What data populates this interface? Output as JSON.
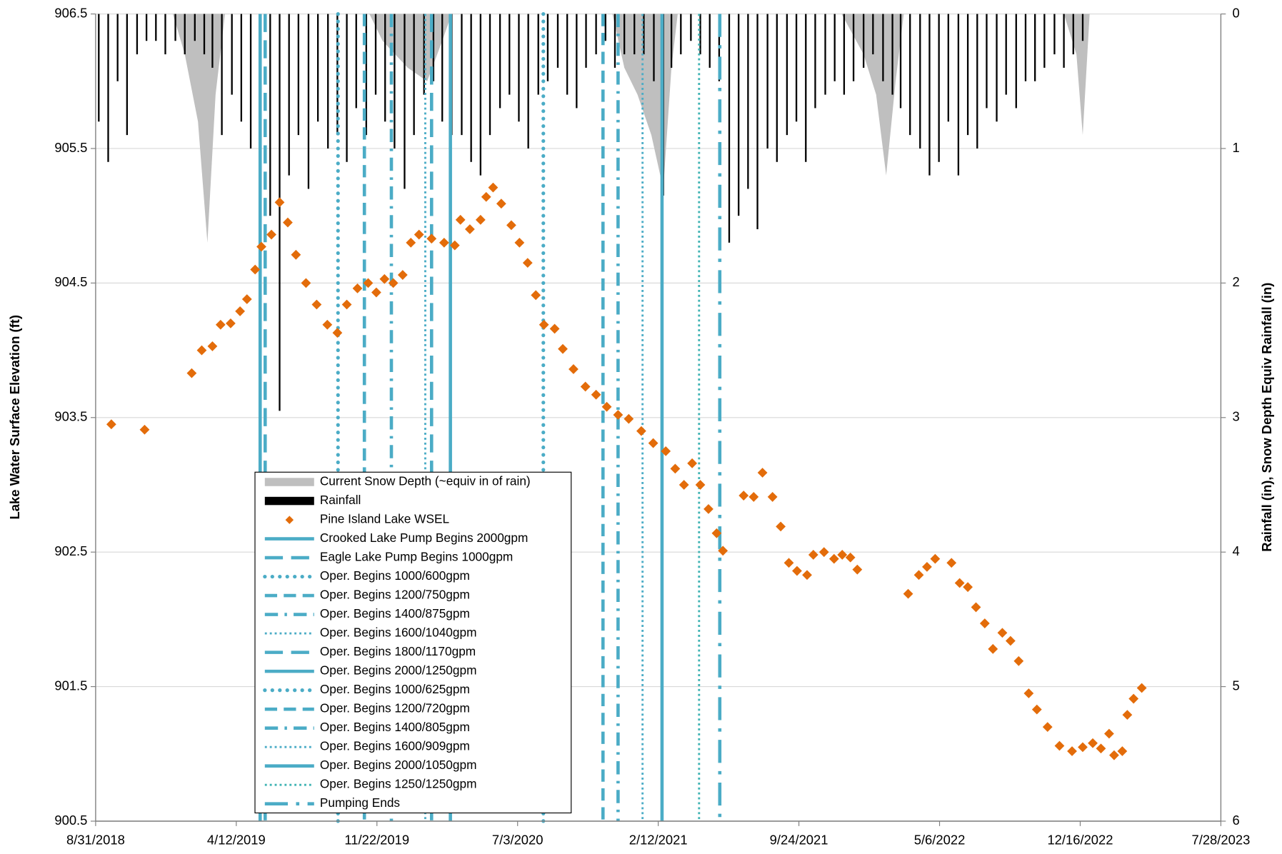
{
  "chart_data": {
    "type": "combo",
    "y_label": "Lake Water Surface Elevation (ft)",
    "y2_label": "Rainfall (in), Snow Depth Equiv Rainfall (in)",
    "xlim": [
      "8/31/2018",
      "7/28/2023"
    ],
    "xticks": [
      "8/31/2018",
      "4/12/2019",
      "11/22/2019",
      "7/3/2020",
      "2/12/2021",
      "9/24/2021",
      "5/6/2022",
      "12/16/2022",
      "7/28/2023"
    ],
    "ylim": [
      900.5,
      906.5
    ],
    "yticks": [
      900.5,
      901.5,
      902.5,
      903.5,
      904.5,
      905.5,
      906.5
    ],
    "y2lim": [
      0,
      6
    ],
    "y2ticks": [
      0,
      1,
      2,
      3,
      4,
      5,
      6
    ],
    "y2_inverted": true,
    "grid": true,
    "series": [
      {
        "name": "Current Snow Depth (~equiv  in of rain)",
        "type": "area",
        "axis": "y2",
        "color": "#bfbfbf",
        "x": [
          "9/1/2018",
          "1/1/2019",
          "1/20/2019",
          "2/10/2019",
          "2/25/2019",
          "3/10/2019",
          "3/25/2019",
          "11/10/2019",
          "12/1/2019",
          "1/10/2020",
          "2/10/2020",
          "3/5/2020",
          "3/20/2020",
          "12/1/2020",
          "12/20/2020",
          "1/10/2021",
          "2/1/2021",
          "2/20/2021",
          "3/5/2021",
          "3/15/2021",
          "12/1/2021",
          "1/5/2022",
          "1/25/2022",
          "2/10/2022",
          "2/25/2022",
          "3/10/2022",
          "11/20/2022",
          "12/10/2022",
          "12/20/2022",
          "12/31/2022"
        ],
        "values": [
          0,
          0,
          0.3,
          0.8,
          1.7,
          0.6,
          0,
          0,
          0.2,
          0.4,
          0.5,
          0.2,
          0,
          0,
          0.4,
          0.6,
          0.9,
          1.3,
          0.4,
          0,
          0,
          0.3,
          0.6,
          1.2,
          0.5,
          0,
          0,
          0.3,
          0.9,
          0
        ]
      },
      {
        "name": "Rainfall",
        "type": "bar",
        "axis": "y2",
        "color": "#000000",
        "x": [
          "9/5/2018",
          "9/20/2018",
          "10/5/2018",
          "10/20/2018",
          "11/5/2018",
          "11/20/2018",
          "12/5/2018",
          "12/20/2018",
          "1/5/2019",
          "1/20/2019",
          "2/5/2019",
          "2/20/2019",
          "3/5/2019",
          "3/20/2019",
          "4/5/2019",
          "4/20/2019",
          "5/5/2019",
          "5/20/2019",
          "6/5/2019",
          "6/20/2019",
          "7/5/2019",
          "7/20/2019",
          "8/5/2019",
          "8/20/2019",
          "9/5/2019",
          "9/20/2019",
          "10/5/2019",
          "10/20/2019",
          "11/5/2019",
          "11/20/2019",
          "12/5/2019",
          "12/20/2019",
          "1/5/2020",
          "1/20/2020",
          "2/5/2020",
          "2/20/2020",
          "3/5/2020",
          "3/20/2020",
          "4/5/2020",
          "4/20/2020",
          "5/5/2020",
          "5/20/2020",
          "6/5/2020",
          "6/20/2020",
          "7/5/2020",
          "7/20/2020",
          "8/5/2020",
          "8/20/2020",
          "9/5/2020",
          "9/20/2020",
          "10/5/2020",
          "10/20/2020",
          "11/5/2020",
          "11/20/2020",
          "12/5/2020",
          "12/20/2020",
          "1/5/2021",
          "1/20/2021",
          "2/5/2021",
          "2/20/2021",
          "3/5/2021",
          "3/20/2021",
          "4/5/2021",
          "4/20/2021",
          "5/5/2021",
          "5/20/2021",
          "6/5/2021",
          "6/20/2021",
          "7/5/2021",
          "7/20/2021",
          "8/5/2021",
          "8/20/2021",
          "9/5/2021",
          "9/20/2021",
          "10/5/2021",
          "10/20/2021",
          "11/5/2021",
          "11/20/2021",
          "12/5/2021",
          "12/20/2021",
          "1/5/2022",
          "1/20/2022",
          "2/5/2022",
          "2/20/2022",
          "3/5/2022",
          "3/20/2022",
          "4/5/2022",
          "4/20/2022",
          "5/5/2022",
          "5/20/2022",
          "6/5/2022",
          "6/20/2022",
          "7/5/2022",
          "7/20/2022",
          "8/5/2022",
          "8/20/2022",
          "9/5/2022",
          "9/20/2022",
          "10/5/2022",
          "10/20/2022",
          "11/5/2022",
          "11/20/2022",
          "12/5/2022",
          "12/20/2022"
        ],
        "values": [
          0.8,
          1.1,
          0.5,
          0.9,
          0.3,
          0.2,
          0.2,
          0.3,
          0.2,
          0.3,
          0.2,
          0.3,
          0.4,
          0.9,
          0.6,
          0.8,
          1.0,
          1.27,
          1.5,
          2.95,
          1.2,
          0.9,
          1.3,
          0.8,
          1.0,
          0.9,
          1.1,
          0.7,
          0.9,
          0.6,
          0.8,
          1.0,
          1.3,
          0.9,
          0.6,
          0.5,
          0.8,
          0.9,
          0.9,
          1.1,
          1.2,
          0.9,
          0.7,
          0.6,
          0.8,
          1.0,
          0.6,
          0.5,
          0.4,
          0.6,
          0.7,
          0.4,
          0.3,
          0.2,
          0.4,
          0.3,
          0.3,
          0.3,
          0.5,
          1.35,
          0.4,
          0.3,
          0.2,
          0.3,
          0.4,
          0.5,
          1.7,
          1.5,
          1.3,
          1.6,
          1.0,
          1.1,
          0.9,
          0.8,
          1.1,
          0.7,
          0.6,
          0.5,
          0.6,
          0.5,
          0.4,
          0.3,
          0.5,
          0.6,
          0.7,
          0.9,
          1.0,
          1.2,
          1.1,
          0.8,
          1.2,
          0.9,
          1.0,
          0.7,
          0.8,
          0.6,
          0.7,
          0.5,
          0.5,
          0.4,
          0.3,
          0.4,
          0.3,
          0.2
        ]
      },
      {
        "name": "Pine Island Lake WSEL",
        "type": "scatter",
        "axis": "y",
        "color": "#e36c0a",
        "x": [
          "9/25/2018",
          "11/17/2018",
          "1/31/2019",
          "2/16/2019",
          "3/5/2019",
          "3/18/2019",
          "4/3/2019",
          "4/18/2019",
          "4/29/2019",
          "5/12/2019",
          "5/22/2019",
          "6/7/2019",
          "6/20/2019",
          "7/3/2019",
          "7/16/2019",
          "8/1/2019",
          "8/18/2019",
          "9/4/2019",
          "9/20/2019",
          "10/5/2019",
          "10/22/2019",
          "11/8/2019",
          "11/21/2019",
          "12/4/2019",
          "12/18/2019",
          "1/2/2020",
          "1/15/2020",
          "1/28/2020",
          "2/17/2020",
          "3/8/2020",
          "3/25/2020",
          "4/3/2020",
          "4/18/2020",
          "5/5/2020",
          "5/14/2020",
          "5/25/2020",
          "6/7/2020",
          "6/23/2020",
          "7/6/2020",
          "7/19/2020",
          "8/1/2020",
          "8/14/2020",
          "8/31/2020",
          "9/13/2020",
          "9/30/2020",
          "10/19/2020",
          "11/5/2020",
          "11/22/2020",
          "12/10/2020",
          "12/27/2020",
          "1/16/2021",
          "2/4/2021",
          "2/24/2021",
          "3/11/2021",
          "3/25/2021",
          "4/7/2021",
          "4/20/2021",
          "5/3/2021",
          "5/16/2021",
          "5/26/2021",
          "6/28/2021",
          "7/14/2021",
          "7/28/2021",
          "8/13/2021",
          "8/26/2021",
          "9/8/2021",
          "9/21/2021",
          "10/7/2021",
          "10/17/2021",
          "11/3/2021",
          "11/19/2021",
          "12/2/2021",
          "12/15/2021",
          "12/26/2021",
          "3/17/2022",
          "4/3/2022",
          "4/16/2022",
          "4/29/2022",
          "5/25/2022",
          "6/7/2022",
          "6/20/2022",
          "7/3/2022",
          "7/17/2022",
          "7/30/2022",
          "8/14/2022",
          "8/27/2022",
          "9/9/2022",
          "9/25/2022",
          "10/8/2022",
          "10/25/2022",
          "11/13/2022",
          "12/3/2022",
          "12/20/2022",
          "1/5/2023",
          "1/18/2023",
          "1/31/2023",
          "2/8/2023",
          "2/21/2023",
          "3/1/2023",
          "3/11/2023",
          "3/24/2023"
        ],
        "values": [
          903.45,
          903.41,
          903.83,
          904.0,
          904.03,
          904.19,
          904.2,
          904.29,
          904.38,
          904.6,
          904.77,
          904.86,
          905.1,
          904.95,
          904.71,
          904.5,
          904.34,
          904.19,
          904.13,
          904.34,
          904.46,
          904.5,
          904.43,
          904.53,
          904.5,
          904.56,
          904.8,
          904.86,
          904.83,
          904.8,
          904.78,
          904.97,
          904.9,
          904.97,
          905.14,
          905.21,
          905.09,
          904.93,
          904.8,
          904.65,
          904.41,
          904.19,
          904.16,
          904.01,
          903.86,
          903.73,
          903.67,
          903.58,
          903.52,
          903.49,
          903.4,
          903.31,
          903.25,
          903.12,
          903.0,
          903.16,
          903.0,
          902.82,
          902.64,
          902.51,
          902.92,
          902.91,
          903.09,
          902.91,
          902.69,
          902.42,
          902.36,
          902.33,
          902.48,
          902.5,
          902.45,
          902.48,
          902.46,
          902.37,
          902.19,
          902.33,
          902.39,
          902.45,
          902.42,
          902.27,
          902.24,
          902.09,
          901.97,
          901.78,
          901.9,
          901.84,
          901.69,
          901.45,
          901.33,
          901.2,
          901.06,
          901.02,
          901.05,
          901.08,
          901.04,
          901.15,
          900.99,
          901.02,
          901.29,
          901.41,
          901.49
        ]
      },
      {
        "name": "Crooked Lake Pump Begins 2000gpm",
        "type": "vline",
        "style": "solid",
        "color": "#4bacc6",
        "x": [
          "5/20/2019"
        ]
      },
      {
        "name": "Eagle Lake Pump Begins 1000gpm",
        "type": "vline",
        "style": "long-dash",
        "color": "#4bacc6",
        "x": [
          "5/28/2019"
        ]
      },
      {
        "name": "Oper. Begins 1000/600gpm",
        "type": "vline",
        "style": "round-dot",
        "color": "#4bacc6",
        "x": [
          "9/21/2019"
        ]
      },
      {
        "name": "Oper. Begins 1200/750gpm",
        "type": "vline",
        "style": "dash",
        "color": "#4bacc6",
        "x": [
          "11/2/2019"
        ]
      },
      {
        "name": "Oper. Begins 1400/875gpm",
        "type": "vline",
        "style": "dash-dot",
        "color": "#4bacc6",
        "x": [
          "12/15/2019"
        ]
      },
      {
        "name": "Oper. Begins 1600/1040gpm",
        "type": "vline",
        "style": "square-dot",
        "color": "#4bacc6",
        "x": [
          "2/7/2020"
        ]
      },
      {
        "name": "Oper. Begins 1800/1170gpm",
        "type": "vline",
        "style": "long-dash",
        "color": "#4bacc6",
        "x": [
          "2/17/2020"
        ]
      },
      {
        "name": "Oper. Begins 2000/1250gpm",
        "type": "vline",
        "style": "solid",
        "color": "#4bacc6",
        "x": [
          "3/18/2020"
        ]
      },
      {
        "name": "Oper. Begins 1000/625gpm",
        "type": "vline",
        "style": "round-dot",
        "color": "#4bacc6",
        "x": [
          "8/13/2020"
        ]
      },
      {
        "name": "Oper. Begins 1200/720gpm",
        "type": "vline",
        "style": "dash",
        "color": "#4bacc6",
        "x": [
          "11/16/2020"
        ]
      },
      {
        "name": "Oper. Begins 1400/805gpm",
        "type": "vline",
        "style": "dash-dot",
        "color": "#4bacc6",
        "x": [
          "12/10/2020"
        ]
      },
      {
        "name": "Oper. Begins 1600/909gpm",
        "type": "vline",
        "style": "square-dot",
        "color": "#4bacc6",
        "x": [
          "1/18/2021"
        ]
      },
      {
        "name": "Oper. Begins 2000/1050gpm",
        "type": "vline",
        "style": "solid",
        "color": "#4bacc6",
        "x": [
          "2/18/2021"
        ]
      },
      {
        "name": "Oper. Begins 1250/1250gpm",
        "type": "vline",
        "style": "square-dot",
        "color": "#3fb3b3",
        "x": [
          "4/18/2021"
        ]
      },
      {
        "name": "Pumping Ends",
        "type": "vline",
        "style": "long-dash-dot",
        "color": "#4bacc6",
        "x": [
          "5/21/2021"
        ]
      }
    ]
  }
}
